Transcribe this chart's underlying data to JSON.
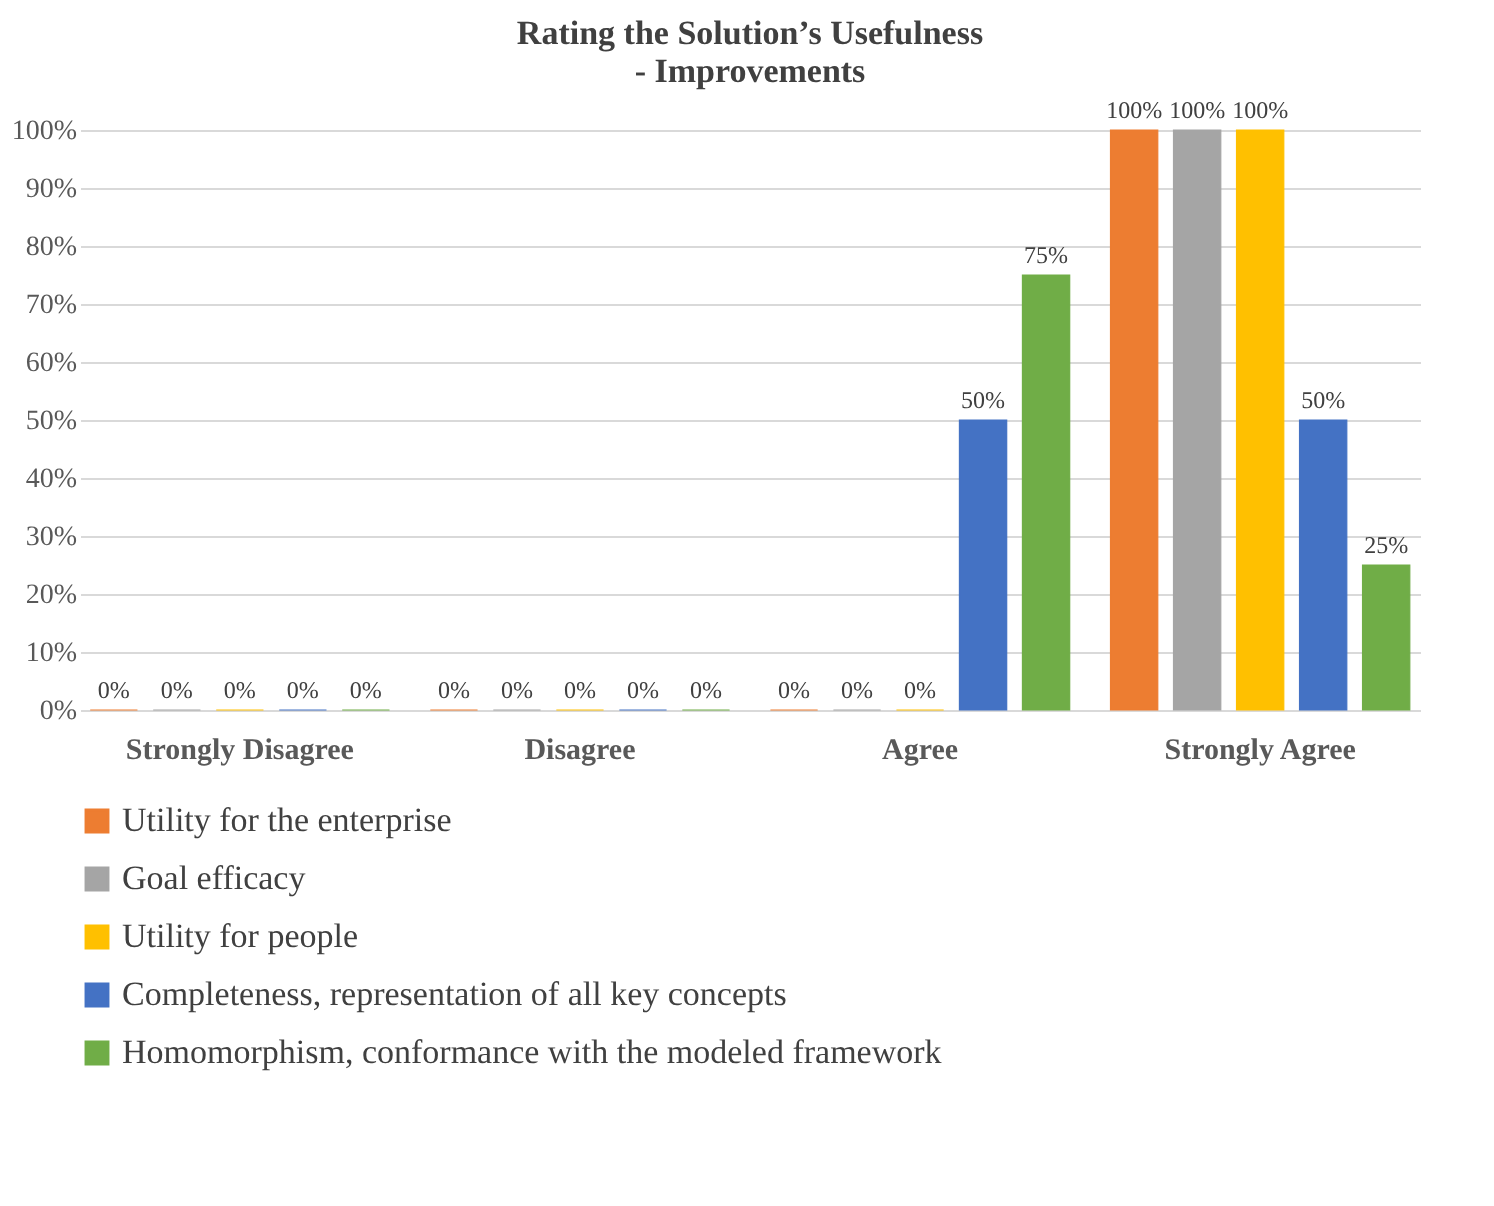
{
  "chart_data": {
    "type": "bar",
    "title": "Rating the Solution’s Usefulness\n- Improvements",
    "categories": [
      "Strongly Disagree",
      "Disagree",
      "Agree",
      "Strongly Agree"
    ],
    "series": [
      {
        "name": "Utility for the enterprise",
        "color": "#ed7d31",
        "values": [
          0,
          0,
          0,
          100
        ],
        "value_labels": [
          "0%",
          "0%",
          "0%",
          "100%"
        ]
      },
      {
        "name": "Goal efficacy",
        "color": "#a5a5a5",
        "values": [
          0,
          0,
          0,
          100
        ],
        "value_labels": [
          "0%",
          "0%",
          "0%",
          "100%"
        ]
      },
      {
        "name": "Utility for people",
        "color": "#ffc000",
        "values": [
          0,
          0,
          0,
          100
        ],
        "value_labels": [
          "0%",
          "0%",
          "0%",
          "100%"
        ]
      },
      {
        "name": "Completeness, representation of all key concepts",
        "color": "#4472c4",
        "values": [
          0,
          0,
          50,
          50
        ],
        "value_labels": [
          "0%",
          "0%",
          "50%",
          "50%"
        ]
      },
      {
        "name": "Homomorphism, conformance with the modeled framework",
        "color": "#70ad47",
        "values": [
          0,
          0,
          75,
          25
        ],
        "value_labels": [
          "0%",
          "0%",
          "75%",
          "25%"
        ]
      }
    ],
    "ylim": [
      0,
      100
    ],
    "yticks": [
      {
        "value": 0,
        "label": "0%"
      },
      {
        "value": 10,
        "label": "10%"
      },
      {
        "value": 20,
        "label": "20%"
      },
      {
        "value": 30,
        "label": "30%"
      },
      {
        "value": 40,
        "label": "40%"
      },
      {
        "value": 50,
        "label": "50%"
      },
      {
        "value": 60,
        "label": "60%"
      },
      {
        "value": 70,
        "label": "70%"
      },
      {
        "value": 80,
        "label": "80%"
      },
      {
        "value": 90,
        "label": "90%"
      },
      {
        "value": 100,
        "label": "100%"
      }
    ],
    "grid": "y",
    "legend": "bottom"
  }
}
